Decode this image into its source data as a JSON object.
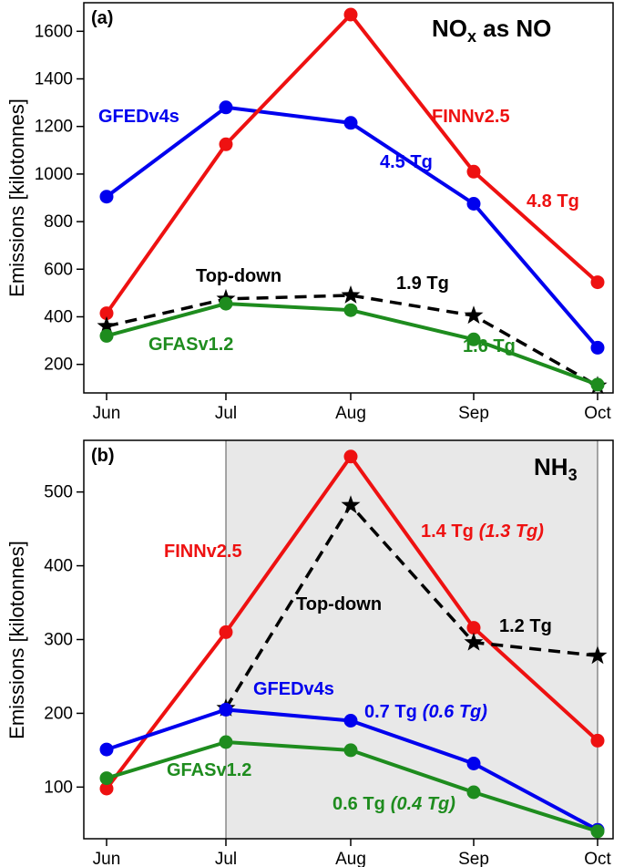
{
  "chart_data": [
    {
      "panel_label": "(a)",
      "title": "NO",
      "title_sub": "x",
      "title_suffix": " as NO",
      "type": "line",
      "categories": [
        "Jun",
        "Jul",
        "Aug",
        "Sep",
        "Oct"
      ],
      "xlabel": "",
      "ylabel": "Emissions [kilotonnes]",
      "ylim": [
        80,
        1720
      ],
      "yticks": [
        200,
        400,
        600,
        800,
        1000,
        1200,
        1400,
        1600
      ],
      "series": [
        {
          "name": "GFEDv4s",
          "color": "#0000ee",
          "style": "solid",
          "marker": "circle",
          "values": [
            905,
            1280,
            1215,
            875,
            270
          ],
          "total": "4.5 Tg"
        },
        {
          "name": "FINNv2.5",
          "color": "#ee1111",
          "style": "solid",
          "marker": "circle",
          "values": [
            415,
            1125,
            1670,
            1010,
            545
          ],
          "total": "4.8 Tg"
        },
        {
          "name": "Top-down",
          "color": "#000000",
          "style": "dashed",
          "marker": "star",
          "values": [
            360,
            475,
            490,
            405,
            110
          ],
          "total": "1.9 Tg"
        },
        {
          "name": "GFASv1.2",
          "color": "#1e8c1e",
          "style": "solid",
          "marker": "circle",
          "values": [
            320,
            455,
            428,
            305,
            115
          ],
          "total": "1.6 Tg"
        }
      ]
    },
    {
      "panel_label": "(b)",
      "title": "NH",
      "title_sub": "3",
      "title_suffix": "",
      "type": "line",
      "categories": [
        "Jun",
        "Jul",
        "Aug",
        "Sep",
        "Oct"
      ],
      "xlabel": "",
      "ylabel": "Emissions [kilotonnes]",
      "ylim": [
        30,
        570
      ],
      "yticks": [
        100,
        200,
        300,
        400,
        500
      ],
      "shaded_x_range": [
        "Jul",
        "Oct"
      ],
      "series": [
        {
          "name": "FINNv2.5",
          "color": "#ee1111",
          "style": "solid",
          "marker": "circle",
          "values": [
            98,
            310,
            548,
            316,
            163
          ],
          "total": "1.4 Tg",
          "total_alt": "(1.3 Tg)"
        },
        {
          "name": "Top-down",
          "color": "#000000",
          "style": "dashed",
          "marker": "star",
          "values": [
            null,
            207,
            482,
            296,
            278
          ],
          "total": "1.2 Tg"
        },
        {
          "name": "GFEDv4s",
          "color": "#0000ee",
          "style": "solid",
          "marker": "circle",
          "values": [
            151,
            205,
            190,
            132,
            42
          ],
          "total": "0.7 Tg",
          "total_alt": "(0.6 Tg)"
        },
        {
          "name": "GFASv1.2",
          "color": "#1e8c1e",
          "style": "solid",
          "marker": "circle",
          "values": [
            112,
            161,
            150,
            93,
            40
          ],
          "total": "0.6 Tg",
          "total_alt": "(0.4 Tg)"
        }
      ]
    }
  ]
}
